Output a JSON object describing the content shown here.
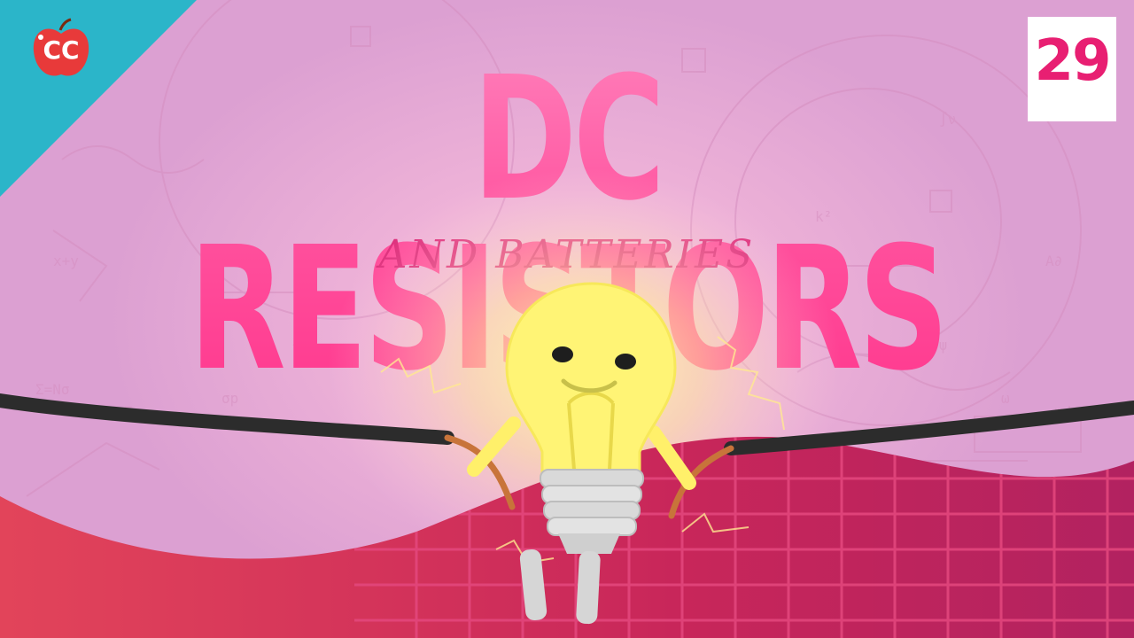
{
  "thumbnail": {
    "title": "DC RESISTORS",
    "subtitle": "AND BATTERIES",
    "episode_number": "29",
    "logo_text": "CC"
  },
  "colors": {
    "background": "#e9a7d4",
    "title_pink": "#ff4f9c",
    "subtitle_pink": "#de2f7c",
    "corner_teal": "#2bb5c9",
    "logo_red": "#e83a3a",
    "bulb_yellow": "#fff27a",
    "ground_red": "#c2275a",
    "wire_black": "#2c2c2c",
    "wire_copper": "#c8743a"
  },
  "icons": {
    "logo": "crash-course-apple-logo",
    "character": "smiling-light-bulb"
  }
}
